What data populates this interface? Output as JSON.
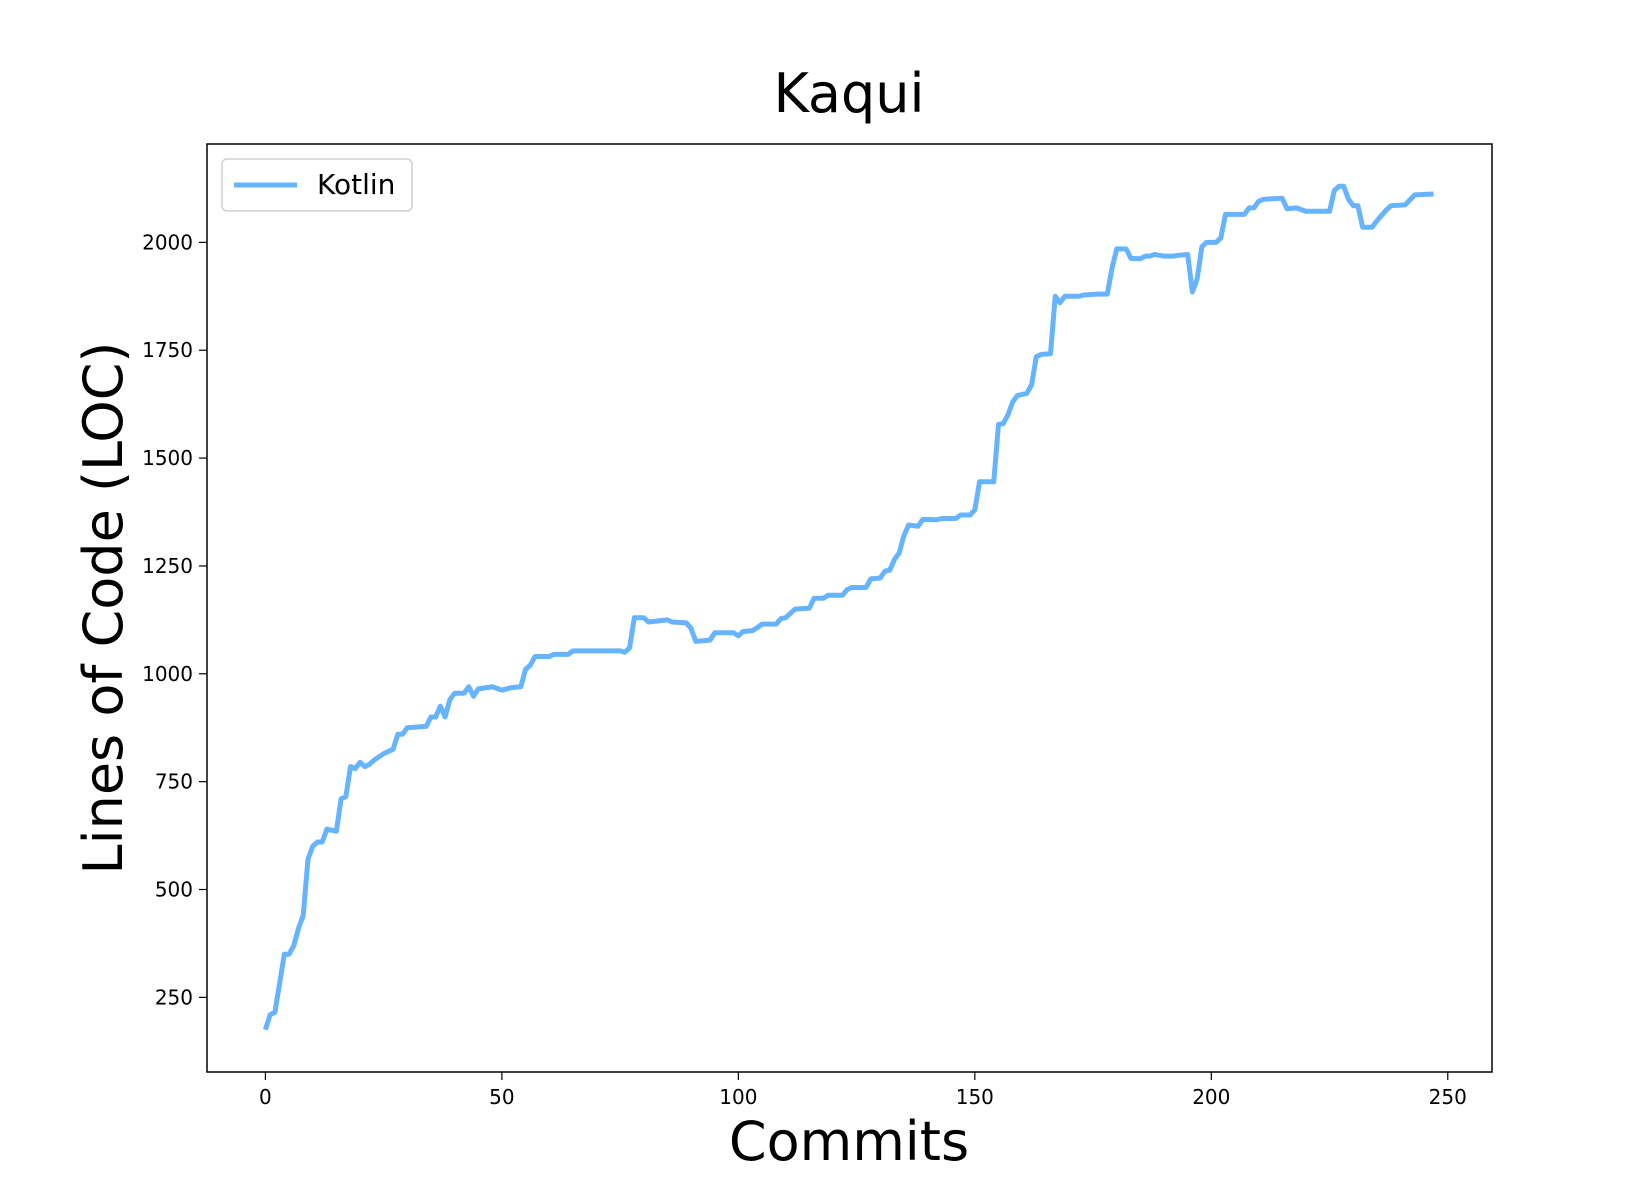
{
  "chart_data": {
    "type": "line",
    "title": "Kaqui",
    "x_label": "Commits",
    "y_label": "Lines of Code (LOC)",
    "x": [
      0,
      1,
      2,
      4,
      5,
      6,
      7,
      8,
      9,
      10,
      11,
      12,
      13,
      15,
      16,
      17,
      18,
      19,
      20,
      21,
      22,
      23,
      25,
      27,
      28,
      29,
      30,
      34,
      35,
      36,
      37,
      38,
      39,
      40,
      42,
      43,
      44,
      45,
      48,
      50,
      52,
      54,
      55,
      56,
      57,
      60,
      61,
      64,
      65,
      75,
      76,
      77,
      78,
      80,
      81,
      85,
      86,
      89,
      90,
      91,
      94,
      95,
      99,
      100,
      101,
      103,
      104,
      105,
      108,
      109,
      110,
      111,
      112,
      115,
      116,
      118,
      119,
      122,
      123,
      124,
      127,
      128,
      130,
      131,
      132,
      133,
      134,
      135,
      136,
      138,
      139,
      142,
      143,
      146,
      147,
      149,
      150,
      151,
      154,
      155,
      156,
      157,
      158,
      159,
      161,
      162,
      163,
      164,
      166,
      167,
      168,
      169,
      172,
      173,
      176,
      178,
      179,
      180,
      182,
      183,
      185,
      186,
      187,
      188,
      190,
      192,
      193,
      195,
      196,
      197,
      198,
      199,
      201,
      202,
      203,
      207,
      208,
      209,
      210,
      211,
      215,
      216,
      218,
      220,
      225,
      226,
      227,
      228,
      229,
      230,
      231,
      232,
      234,
      235,
      237,
      238,
      241,
      243,
      247
    ],
    "series": [
      {
        "name": "Kotlin",
        "color": "#66b3ff",
        "values": [
          175,
          210,
          215,
          350,
          350,
          370,
          410,
          440,
          570,
          600,
          610,
          610,
          640,
          635,
          710,
          715,
          785,
          780,
          795,
          785,
          790,
          800,
          815,
          825,
          860,
          860,
          875,
          878,
          900,
          900,
          925,
          900,
          940,
          955,
          955,
          970,
          948,
          965,
          970,
          962,
          968,
          970,
          1010,
          1020,
          1040,
          1040,
          1045,
          1045,
          1053,
          1053,
          1050,
          1060,
          1130,
          1130,
          1120,
          1125,
          1120,
          1118,
          1105,
          1075,
          1078,
          1095,
          1095,
          1088,
          1098,
          1100,
          1107,
          1115,
          1115,
          1128,
          1130,
          1140,
          1150,
          1152,
          1175,
          1175,
          1182,
          1182,
          1195,
          1200,
          1200,
          1220,
          1222,
          1238,
          1240,
          1265,
          1280,
          1320,
          1345,
          1342,
          1358,
          1357,
          1360,
          1360,
          1368,
          1368,
          1380,
          1445,
          1445,
          1578,
          1580,
          1600,
          1630,
          1645,
          1650,
          1670,
          1735,
          1740,
          1742,
          1875,
          1860,
          1875,
          1875,
          1878,
          1880,
          1880,
          1940,
          1985,
          1985,
          1963,
          1962,
          1968,
          1968,
          1972,
          1968,
          1968,
          1970,
          1972,
          1885,
          1915,
          1990,
          2000,
          2000,
          2010,
          2065,
          2065,
          2080,
          2080,
          2095,
          2100,
          2102,
          2078,
          2080,
          2072,
          2072,
          2120,
          2130,
          2130,
          2100,
          2085,
          2085,
          2035,
          2035,
          2050,
          2075,
          2085,
          2087,
          2110,
          2112
        ]
      }
    ],
    "xlim": [
      -12.35,
      259.35
    ],
    "ylim": [
      77,
      2228
    ],
    "xticks": [
      0,
      50,
      100,
      150,
      200,
      250
    ],
    "yticks": [
      250,
      500,
      750,
      1000,
      1250,
      1500,
      1750,
      2000
    ],
    "legend": "upper left"
  }
}
